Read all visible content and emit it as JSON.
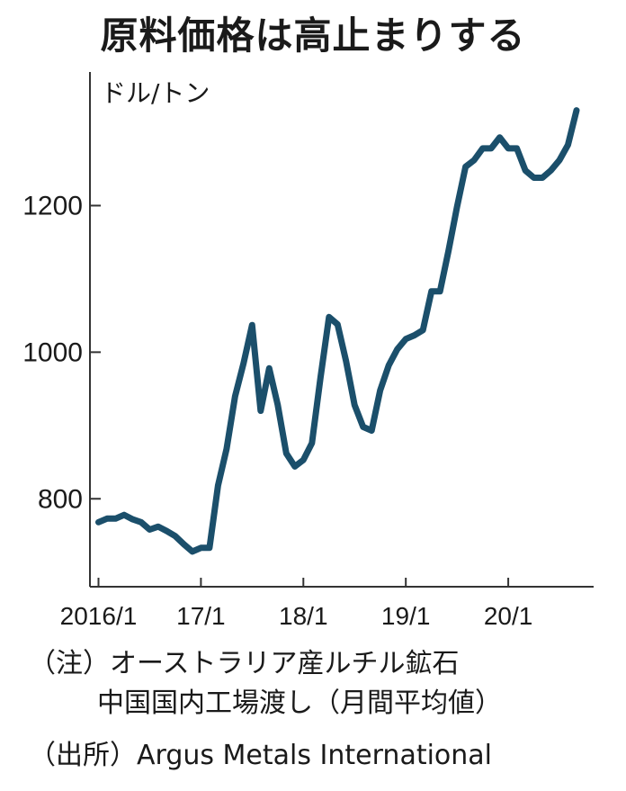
{
  "chart_data": {
    "type": "line",
    "title": "原料価格は高止まりする",
    "ylabel": "ドル/トン",
    "ylim": [
      680,
      1370
    ],
    "yticks": [
      800,
      1000,
      1200
    ],
    "ytick_labels": [
      "800",
      "1000",
      "1200"
    ],
    "xticks": [
      0,
      12,
      24,
      36,
      48
    ],
    "xtick_labels": [
      "2016/1",
      "17/1",
      "18/1",
      "19/1",
      "20/1"
    ],
    "xlim": [
      -1,
      58
    ],
    "color": "#1b4f6b",
    "series": [
      {
        "x": [
          0,
          1,
          2,
          3,
          4,
          5,
          6,
          7,
          8,
          9,
          10,
          11,
          12,
          13,
          14,
          15,
          16,
          17,
          18,
          19,
          20,
          21,
          22,
          23,
          24,
          25,
          26,
          27,
          28,
          29,
          30,
          31,
          32,
          33,
          34,
          35,
          36,
          37,
          38,
          39,
          40,
          41,
          42,
          43,
          44,
          45,
          46,
          47,
          48,
          49,
          50,
          51,
          52,
          53,
          54,
          55,
          56
        ],
        "values": [
          768,
          773,
          773,
          778,
          772,
          768,
          758,
          762,
          756,
          749,
          738,
          728,
          733,
          733,
          818,
          868,
          940,
          985,
          1037,
          920,
          978,
          928,
          862,
          844,
          853,
          876,
          965,
          1048,
          1038,
          988,
          928,
          898,
          893,
          948,
          982,
          1004,
          1018,
          1023,
          1030,
          1083,
          1083,
          1138,
          1198,
          1253,
          1262,
          1278,
          1278,
          1293,
          1278,
          1278,
          1248,
          1238,
          1238,
          1248,
          1262,
          1283,
          1330
        ]
      }
    ]
  },
  "notes": {
    "line1": "（注）オーストラリア産ルチル鉱石",
    "line2": "中国国内工場渡し（月間平均値）",
    "line3": "（出所）Argus Metals International"
  }
}
